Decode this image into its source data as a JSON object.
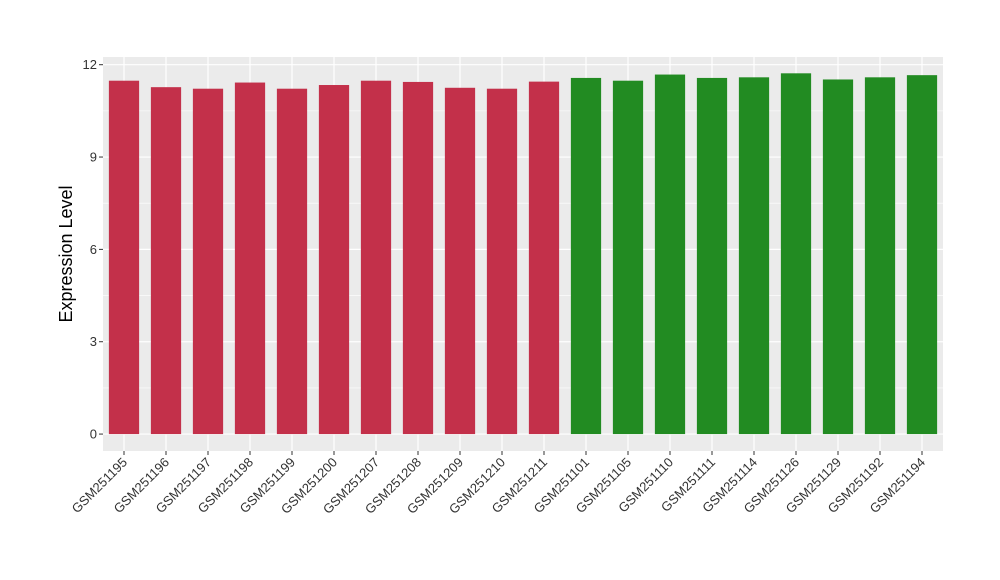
{
  "chart_data": {
    "type": "bar",
    "title": "",
    "xlabel": "",
    "ylabel": "Expression Level",
    "ylim": [
      -0.55,
      12.25
    ],
    "yticks": [
      0,
      3,
      6,
      9,
      12
    ],
    "grid": true,
    "background": "#ebebeb",
    "grid_color": "#ffffff",
    "categories": [
      "GSM251195",
      "GSM251196",
      "GSM251197",
      "GSM251198",
      "GSM251199",
      "GSM251200",
      "GSM251207",
      "GSM251208",
      "GSM251209",
      "GSM251210",
      "GSM251211",
      "GSM251101",
      "GSM251105",
      "GSM251110",
      "GSM251111",
      "GSM251114",
      "GSM251126",
      "GSM251129",
      "GSM251192",
      "GSM251194"
    ],
    "values": [
      11.48,
      11.27,
      11.22,
      11.42,
      11.22,
      11.34,
      11.48,
      11.44,
      11.25,
      11.22,
      11.45,
      11.57,
      11.48,
      11.68,
      11.57,
      11.59,
      11.72,
      11.52,
      11.59,
      11.66
    ],
    "colors": [
      "#c3304a",
      "#c3304a",
      "#c3304a",
      "#c3304a",
      "#c3304a",
      "#c3304a",
      "#c3304a",
      "#c3304a",
      "#c3304a",
      "#c3304a",
      "#c3304a",
      "#228b22",
      "#228b22",
      "#228b22",
      "#228b22",
      "#228b22",
      "#228b22",
      "#228b22",
      "#228b22",
      "#228b22"
    ]
  }
}
